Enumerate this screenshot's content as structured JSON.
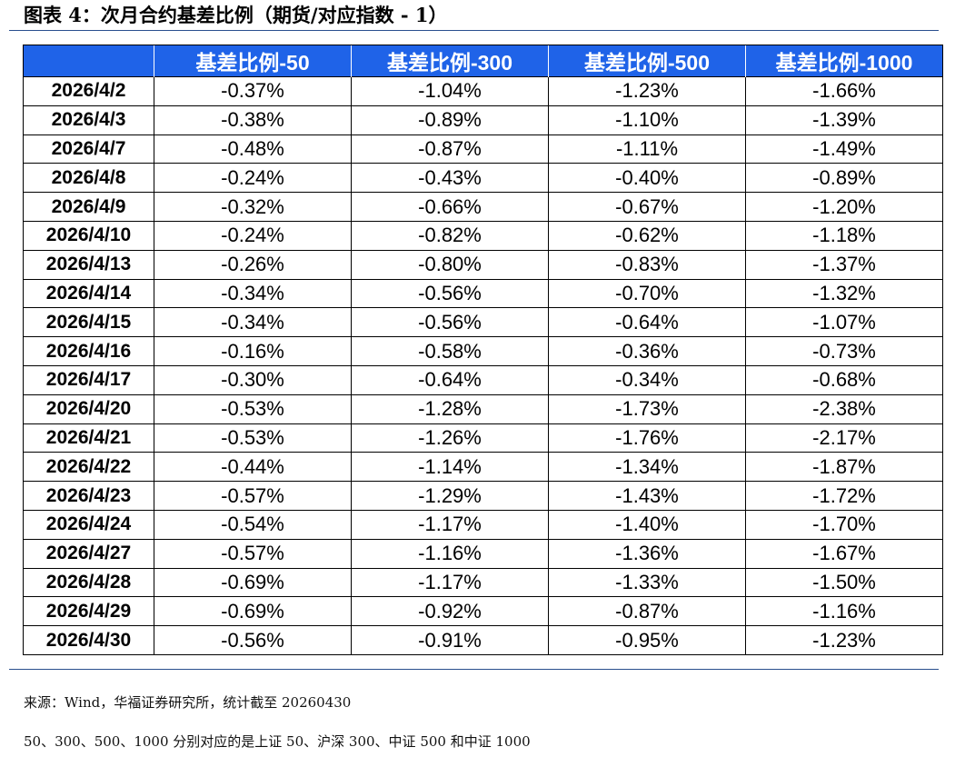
{
  "title": "图表 4：次月合约基差比例（期货/对应指数 - 1）",
  "table": {
    "headers": [
      "",
      "基差比例-50",
      "基差比例-300",
      "基差比例-500",
      "基差比例-1000"
    ],
    "rows": [
      [
        "2026/4/2",
        "-0.37%",
        "-1.04%",
        "-1.23%",
        "-1.66%"
      ],
      [
        "2026/4/3",
        "-0.38%",
        "-0.89%",
        "-1.10%",
        "-1.39%"
      ],
      [
        "2026/4/7",
        "-0.48%",
        "-0.87%",
        "-1.11%",
        "-1.49%"
      ],
      [
        "2026/4/8",
        "-0.24%",
        "-0.43%",
        "-0.40%",
        "-0.89%"
      ],
      [
        "2026/4/9",
        "-0.32%",
        "-0.66%",
        "-0.67%",
        "-1.20%"
      ],
      [
        "2026/4/10",
        "-0.24%",
        "-0.82%",
        "-0.62%",
        "-1.18%"
      ],
      [
        "2026/4/13",
        "-0.26%",
        "-0.80%",
        "-0.83%",
        "-1.37%"
      ],
      [
        "2026/4/14",
        "-0.34%",
        "-0.56%",
        "-0.70%",
        "-1.32%"
      ],
      [
        "2026/4/15",
        "-0.34%",
        "-0.56%",
        "-0.64%",
        "-1.07%"
      ],
      [
        "2026/4/16",
        "-0.16%",
        "-0.58%",
        "-0.36%",
        "-0.73%"
      ],
      [
        "2026/4/17",
        "-0.30%",
        "-0.64%",
        "-0.34%",
        "-0.68%"
      ],
      [
        "2026/4/20",
        "-0.53%",
        "-1.28%",
        "-1.73%",
        "-2.38%"
      ],
      [
        "2026/4/21",
        "-0.53%",
        "-1.26%",
        "-1.76%",
        "-2.17%"
      ],
      [
        "2026/4/22",
        "-0.44%",
        "-1.14%",
        "-1.34%",
        "-1.87%"
      ],
      [
        "2026/4/23",
        "-0.57%",
        "-1.29%",
        "-1.43%",
        "-1.72%"
      ],
      [
        "2026/4/24",
        "-0.54%",
        "-1.17%",
        "-1.40%",
        "-1.70%"
      ],
      [
        "2026/4/27",
        "-0.57%",
        "-1.16%",
        "-1.36%",
        "-1.67%"
      ],
      [
        "2026/4/28",
        "-0.69%",
        "-1.17%",
        "-1.33%",
        "-1.50%"
      ],
      [
        "2026/4/29",
        "-0.69%",
        "-0.92%",
        "-0.87%",
        "-1.16%"
      ],
      [
        "2026/4/30",
        "-0.56%",
        "-0.91%",
        "-0.95%",
        "-1.23%"
      ]
    ]
  },
  "notes": {
    "source": "来源：Wind，华福证券研究所，统计截至 20260430",
    "definition": "50、300、500、1000 分别对应的是上证 50、沪深 300、中证 500 和中证 1000"
  },
  "colors": {
    "header_bg": "#1f63e8",
    "header_text": "#ffffff",
    "rule": "#2a4f8e"
  }
}
